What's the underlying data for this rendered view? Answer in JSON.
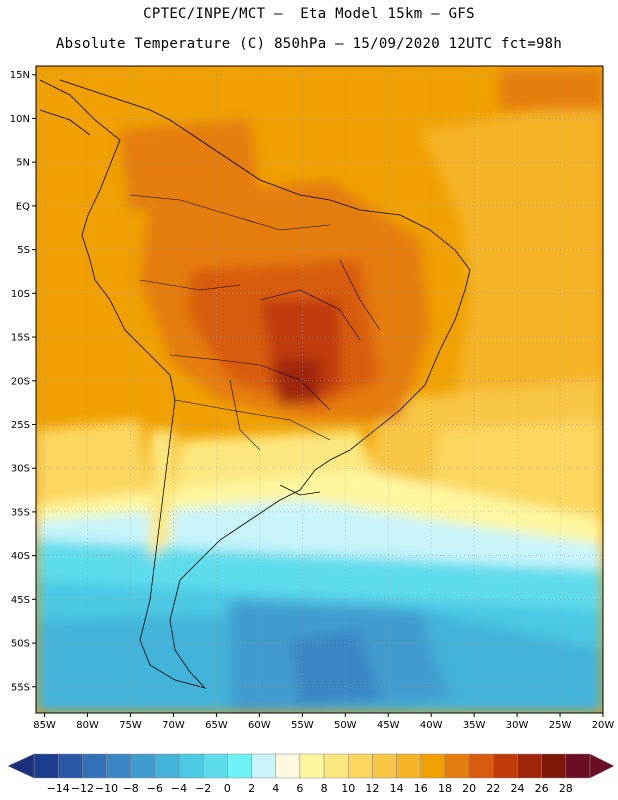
{
  "header": {
    "line1": "CPTEC/INPE/MCT –  Eta Model 15km – GFS",
    "line2": "Absolute Temperature (C) 850hPa – 15/09/2020 12UTC fct=98h"
  },
  "map": {
    "lat_labels": [
      "15N",
      "10N",
      "5N",
      "EQ",
      "5S",
      "10S",
      "15S",
      "20S",
      "25S",
      "30S",
      "35S",
      "40S",
      "45S",
      "50S",
      "55S"
    ],
    "lon_labels": [
      "85W",
      "80W",
      "75W",
      "70W",
      "65W",
      "60W",
      "55W",
      "50W",
      "45W",
      "40W",
      "35W",
      "30W",
      "25W",
      "20W"
    ],
    "extent": {
      "lon_min": -86,
      "lon_max": -20,
      "lat_min": -58,
      "lat_max": 16
    }
  },
  "colorbar": {
    "labels": [
      "-14",
      "-12",
      "-10",
      "-8",
      "-6",
      "-4",
      "-2",
      "0",
      "2",
      "4",
      "6",
      "8",
      "10",
      "12",
      "14",
      "16",
      "18",
      "20",
      "22",
      "24",
      "26",
      "28"
    ],
    "colors": [
      "#1a3d8f",
      "#2b57a8",
      "#3270b7",
      "#3b86c4",
      "#3f9ccf",
      "#42b3d9",
      "#4cc9e3",
      "#5fdcec",
      "#6ff2f5",
      "#c8f4fa",
      "#fff9e0",
      "#fef7a0",
      "#fde880",
      "#fbd760",
      "#f7c645",
      "#f5b325",
      "#f0a000",
      "#e57d10",
      "#d85c10",
      "#c03a08",
      "#9e2508",
      "#7d1808",
      "#6a0d25"
    ]
  }
}
